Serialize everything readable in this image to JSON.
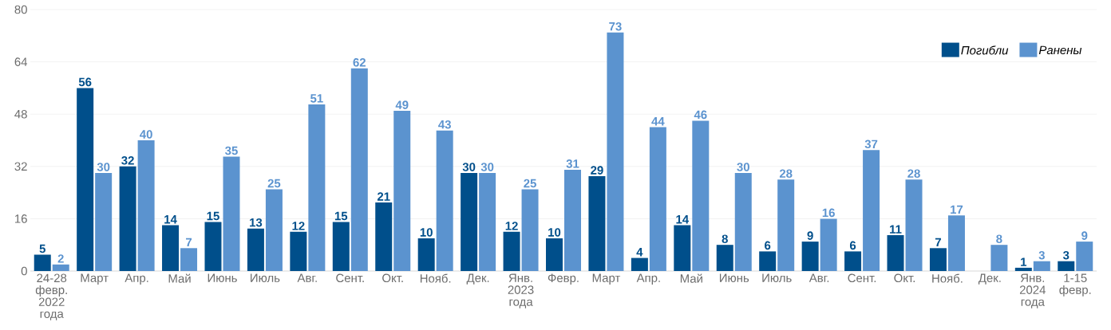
{
  "chart_data": {
    "type": "bar",
    "categories": [
      "24-28 февр. 2022 года",
      "Март",
      "Апр.",
      "Май",
      "Июнь",
      "Июль",
      "Авг.",
      "Сент.",
      "Окт.",
      "Нояб.",
      "Дек.",
      "Янв. 2023 года",
      "Февр.",
      "Март",
      "Апр.",
      "Май",
      "Июнь",
      "Июль",
      "Авг.",
      "Сент.",
      "Окт.",
      "Нояб.",
      "Дек.",
      "Янв. 2024 года",
      "1-15 февр."
    ],
    "series": [
      {
        "name": "Погибли",
        "color": "#004f8b",
        "values": [
          5,
          56,
          32,
          14,
          15,
          13,
          12,
          15,
          21,
          10,
          30,
          12,
          10,
          29,
          4,
          14,
          8,
          6,
          9,
          6,
          11,
          7,
          null,
          1,
          3
        ]
      },
      {
        "name": "Ранены",
        "color": "#5b93cf",
        "values": [
          2,
          30,
          40,
          7,
          35,
          25,
          51,
          62,
          49,
          43,
          30,
          25,
          31,
          73,
          44,
          46,
          30,
          28,
          16,
          37,
          28,
          17,
          8,
          3,
          9
        ]
      }
    ],
    "ylim": [
      0,
      80
    ],
    "yticks": [
      0,
      16,
      32,
      48,
      64,
      80
    ],
    "grid": "y",
    "legend": "top right",
    "data_labels": true
  }
}
